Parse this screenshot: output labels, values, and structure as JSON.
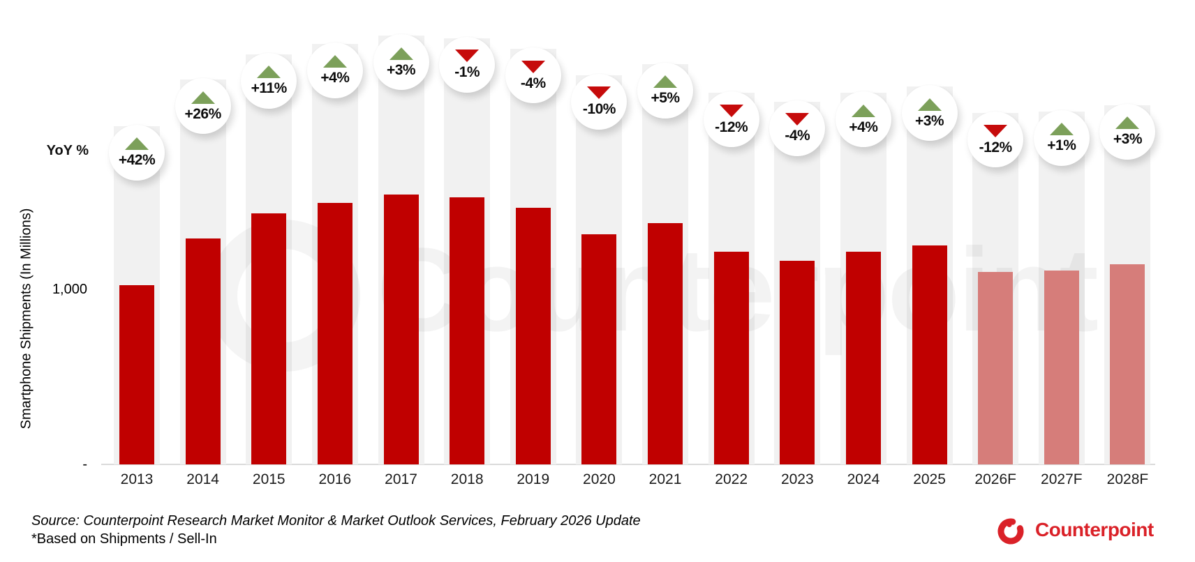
{
  "chart_data": {
    "type": "bar",
    "ylabel": "Smartphone Shipments (In Millions)",
    "yoy_axis_label": "YoY %",
    "categories": [
      "2013",
      "2014",
      "2015",
      "2016",
      "2017",
      "2018",
      "2019",
      "2020",
      "2021",
      "2022",
      "2023",
      "2024",
      "2025",
      "2026F",
      "2027F",
      "2028F"
    ],
    "values": [
      1020,
      1285,
      1430,
      1490,
      1535,
      1520,
      1460,
      1310,
      1375,
      1210,
      1160,
      1210,
      1245,
      1095,
      1105,
      1140
    ],
    "yoy_badges": [
      "+42%",
      "+26%",
      "+11%",
      "+4%",
      "+3%",
      "-1%",
      "-4%",
      "-10%",
      "+5%",
      "-12%",
      "-4%",
      "+4%",
      "+3%",
      "-12%",
      "+1%",
      "+3%"
    ],
    "y_ticks": [
      {
        "label": "1,000",
        "value": 1000
      },
      {
        "label": "-",
        "value": 0
      }
    ],
    "ylim": [
      0,
      1600
    ],
    "grid": false,
    "legend": "none",
    "forecast_from_index": 13,
    "colors": {
      "bar": "#c00000",
      "forecast_bar": "#d67d7a",
      "yoy_up": "#7ca05a",
      "yoy_down": "#c60b0b",
      "band": "#f1f1f1"
    }
  },
  "watermark": {
    "text": "Counterpoint"
  },
  "footer": {
    "source_line": "Source: Counterpoint Research Market Monitor & Market Outlook Services, February 2026 Update",
    "note_line": "*Based on Shipments / Sell-In",
    "logo_text": "Counterpoint",
    "logo_color": "#da2128"
  }
}
